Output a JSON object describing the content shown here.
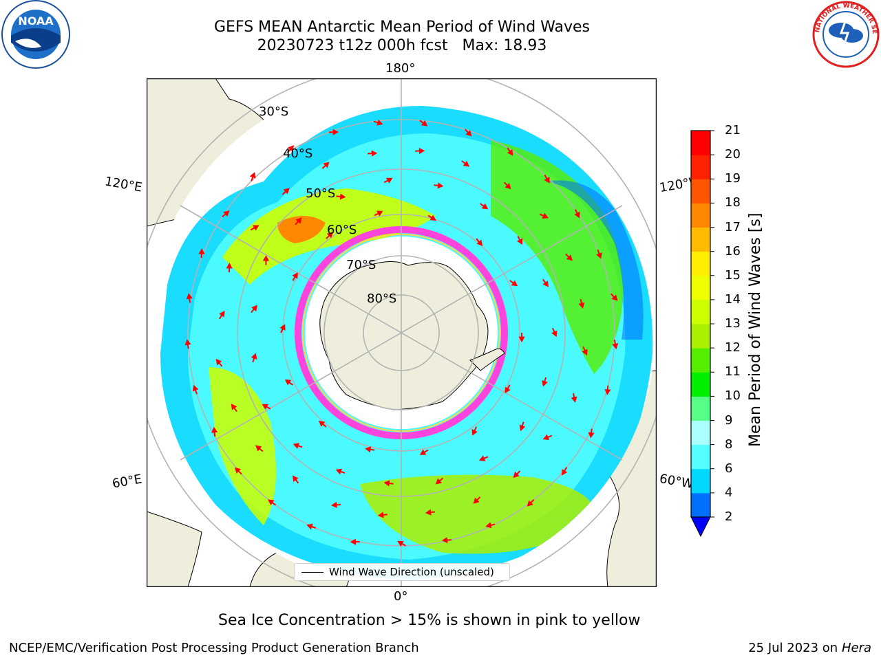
{
  "title": {
    "line1": "GEFS MEAN Antarctic Mean Period of Wind Waves",
    "line2": "20230723 t12z 000h fcst   Max: 18.93"
  },
  "logos": {
    "left": "noaa-logo",
    "left_text": "NOAA",
    "right": "national-weather-service-logo",
    "right_text": "NATIONAL WEATHER SERVICE"
  },
  "map": {
    "projection": "south-polar-stereographic",
    "longitude_labels": {
      "top": "180°",
      "bottom": "0°",
      "left_upper": "120°E",
      "left_lower": "60°E",
      "right_upper": "120°W",
      "right_lower": "60°W"
    },
    "latitude_labels": [
      "30°S",
      "40°S",
      "50°S",
      "60°S",
      "70°S",
      "80°S"
    ],
    "colors": {
      "land": "#efeedd",
      "ice_pink": "#ff44dd",
      "ice_yellow": "#ffd54a",
      "arrows": "#ff0000",
      "grid": "#b3b3b3"
    }
  },
  "legend": {
    "label": "Wind Wave Direction (unscaled)"
  },
  "colorbar": {
    "label": "Mean Period of Wind Waves [s]",
    "ticks": [
      "2",
      "4",
      "6",
      "8",
      "9",
      "10",
      "11",
      "12",
      "13",
      "14",
      "15",
      "16",
      "17",
      "18",
      "19",
      "20",
      "21"
    ],
    "colors": [
      "#0000ff",
      "#0070ff",
      "#00d8ff",
      "#55ffff",
      "#aaffff",
      "#55ff88",
      "#00ee00",
      "#55ee00",
      "#aaee00",
      "#ccff00",
      "#eeff00",
      "#ffee00",
      "#ffbb00",
      "#ff8800",
      "#ff5500",
      "#ff2200",
      "#ff0000"
    ],
    "extend": "min"
  },
  "subtitle": "Sea Ice Concentration > 15% is shown in pink to yellow",
  "footer": {
    "left": "NCEP/EMC/Verification Post Processing Product Generation Branch",
    "date": "25 Jul 2023 on ",
    "host": "Hera"
  }
}
